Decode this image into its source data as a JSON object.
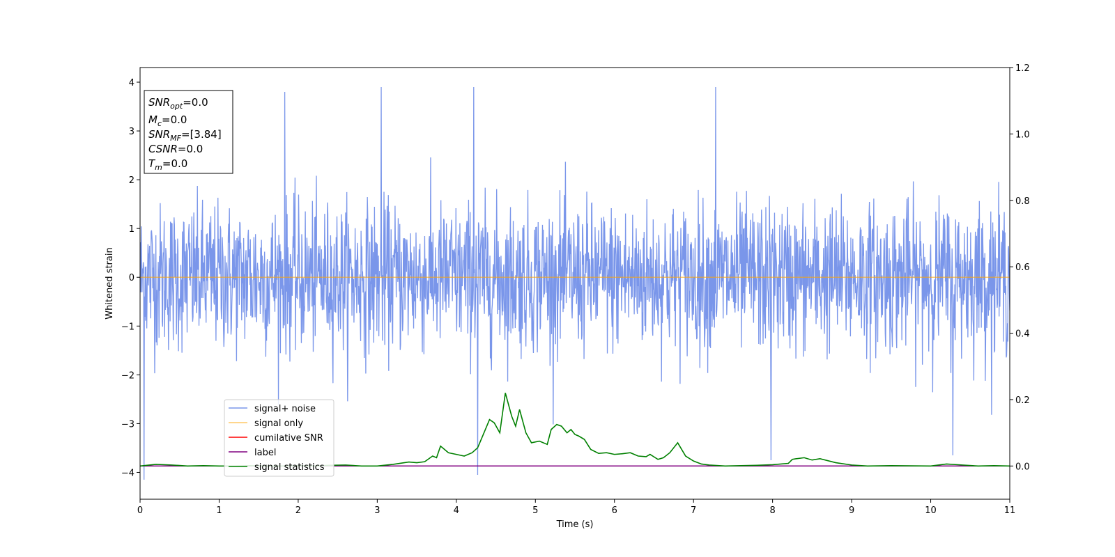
{
  "chart_data": {
    "type": "line",
    "title": "",
    "xlabel": "Time (s)",
    "ylabel": "Whitened strain",
    "xlim": [
      0,
      11
    ],
    "ylim": [
      -4.55,
      4.3
    ],
    "y2lim": [
      -0.1,
      1.2
    ],
    "x_ticks": [
      "0",
      "1",
      "2",
      "3",
      "4",
      "5",
      "6",
      "7",
      "8",
      "9",
      "10",
      "11"
    ],
    "y_ticks": [
      "4",
      "3",
      "2",
      "1",
      "0",
      "−1",
      "−2",
      "−3",
      "−4"
    ],
    "y2_ticks": [
      "1.2",
      "1.0",
      "0.8",
      "0.6",
      "0.4",
      "0.2",
      "0.0"
    ],
    "grid": false,
    "legend_placement": "lower-left",
    "series": [
      {
        "name": "signal+ noise",
        "axis": "left",
        "color": "#4169e1",
        "sample_rate": 200,
        "noise_sigma": 0.75,
        "peaks": [
          [
            1.83,
            3.8
          ],
          [
            3.05,
            3.9
          ],
          [
            4.22,
            3.9
          ],
          [
            7.28,
            3.9
          ],
          [
            0.05,
            -4.15
          ],
          [
            4.27,
            -4.05
          ],
          [
            7.98,
            -3.75
          ],
          [
            10.28,
            -3.65
          ]
        ]
      },
      {
        "name": "signal only",
        "axis": "left",
        "color": "#ffa500",
        "x": [
          0,
          11
        ],
        "y": [
          0,
          0
        ]
      },
      {
        "name": "cumilative SNR",
        "axis": "left",
        "color": "#ff0000",
        "x": [],
        "y": []
      },
      {
        "name": "label",
        "axis": "right",
        "color": "#800080",
        "x": [
          0,
          11
        ],
        "y": [
          0,
          0
        ]
      },
      {
        "name": "signal statistics",
        "axis": "right",
        "color": "#008000",
        "x": [
          0,
          0.2,
          0.4,
          0.6,
          0.8,
          1.0,
          1.2,
          1.4,
          1.6,
          1.8,
          2.0,
          2.2,
          2.4,
          2.6,
          2.8,
          3.0,
          3.2,
          3.4,
          3.5,
          3.6,
          3.7,
          3.75,
          3.8,
          3.9,
          4.0,
          4.1,
          4.2,
          4.27,
          4.35,
          4.42,
          4.48,
          4.55,
          4.62,
          4.7,
          4.75,
          4.8,
          4.88,
          4.95,
          5.05,
          5.15,
          5.2,
          5.27,
          5.33,
          5.4,
          5.45,
          5.5,
          5.55,
          5.62,
          5.7,
          5.8,
          5.9,
          6.0,
          6.1,
          6.2,
          6.3,
          6.4,
          6.45,
          6.55,
          6.62,
          6.7,
          6.8,
          6.9,
          7.0,
          7.1,
          7.2,
          7.4,
          7.6,
          7.8,
          8.0,
          8.2,
          8.25,
          8.3,
          8.4,
          8.5,
          8.6,
          8.8,
          9.0,
          9.2,
          9.5,
          10.0,
          10.2,
          10.4,
          10.6,
          10.8,
          11.0
        ],
        "y": [
          0.0,
          0.005,
          0.003,
          0.0,
          0.001,
          0.0,
          0.0,
          0.001,
          0.0,
          0.0,
          0.001,
          0.0,
          0.002,
          0.003,
          0.0,
          0.0,
          0.005,
          0.012,
          0.01,
          0.013,
          0.03,
          0.025,
          0.06,
          0.04,
          0.035,
          0.03,
          0.04,
          0.055,
          0.1,
          0.14,
          0.13,
          0.1,
          0.22,
          0.15,
          0.12,
          0.17,
          0.1,
          0.07,
          0.075,
          0.065,
          0.11,
          0.125,
          0.12,
          0.1,
          0.11,
          0.095,
          0.09,
          0.08,
          0.05,
          0.038,
          0.04,
          0.035,
          0.037,
          0.04,
          0.03,
          0.028,
          0.035,
          0.02,
          0.025,
          0.04,
          0.07,
          0.03,
          0.015,
          0.006,
          0.003,
          0.0,
          0.001,
          0.002,
          0.004,
          0.008,
          0.02,
          0.022,
          0.025,
          0.018,
          0.022,
          0.01,
          0.003,
          0.0,
          0.001,
          0.0,
          0.006,
          0.003,
          0.0,
          0.001,
          0.0
        ]
      }
    ],
    "annotation": {
      "lines": [
        {
          "var": "SNR",
          "sub": "opt",
          "value": "=0.0"
        },
        {
          "var": "M",
          "sub": "c",
          "value": "=0.0"
        },
        {
          "var": "SNR",
          "sub": "MF",
          "value": "=[3.84]"
        },
        {
          "var": "CSNR",
          "sub": "",
          "value": "=0.0"
        },
        {
          "var": "T",
          "sub": "m",
          "value": "=0.0"
        }
      ]
    }
  }
}
